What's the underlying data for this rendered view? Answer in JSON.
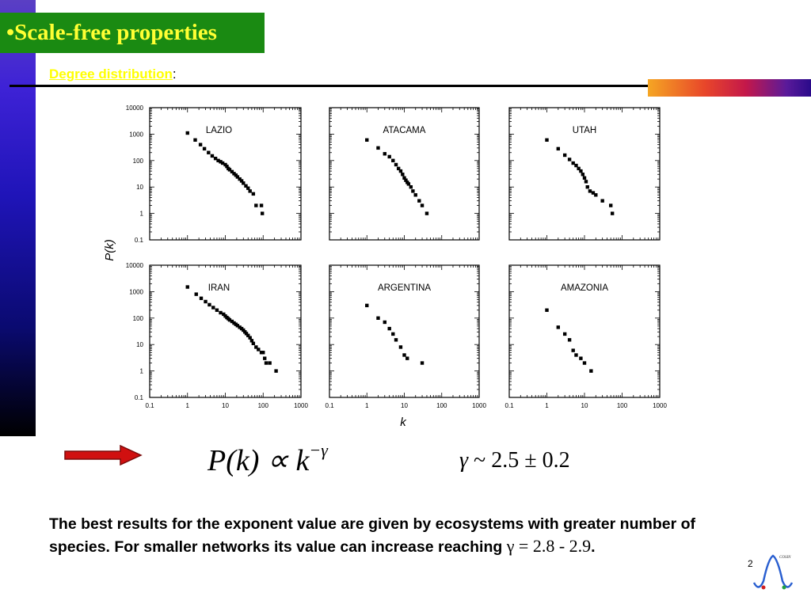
{
  "slide": {
    "title": "•Scale-free properties",
    "subtitle_link": "Degree distribution",
    "subtitle_colon": ":",
    "page_number": "2",
    "logo_text": "COSIN"
  },
  "formula": {
    "lhs": "P(k) ∝ k",
    "exponent": "−γ",
    "gamma_symbol": "γ",
    "gamma_value": " ~ 2.5 ± 0.2"
  },
  "body": {
    "line1": "The best results for the exponent value are given by ecosystems with greater number of species. For smaller networks its value can increase reaching ",
    "math": "γ = 2.8 - 2.9",
    "tail": "."
  },
  "axes": {
    "ylabel": "P(k)",
    "xlabel": "k",
    "x_ticks": [
      "0.1",
      "1",
      "10",
      "100",
      "1000"
    ],
    "y_ticks": [
      "10000",
      "1000",
      "100",
      "10",
      "1",
      "0.1"
    ]
  },
  "chart_data": [
    {
      "type": "scatter",
      "title": "LAZIO",
      "xscale": "log",
      "yscale": "log",
      "xlim": [
        0.1,
        1000
      ],
      "ylim": [
        0.1,
        10000
      ],
      "x": [
        1,
        1.6,
        2.2,
        2.8,
        3.6,
        4.5,
        5.5,
        6.5,
        7.5,
        8.5,
        10,
        11,
        12,
        13,
        15,
        17,
        19,
        21,
        24,
        27,
        30,
        35,
        40,
        45,
        55,
        65,
        90,
        95
      ],
      "y": [
        1100,
        600,
        400,
        280,
        200,
        150,
        120,
        100,
        90,
        80,
        70,
        60,
        50,
        45,
        38,
        32,
        28,
        24,
        20,
        17,
        14,
        11,
        9,
        7,
        5.5,
        2,
        2,
        1
      ]
    },
    {
      "type": "scatter",
      "title": "ATACAMA",
      "xscale": "log",
      "yscale": "log",
      "xlim": [
        0.1,
        1000
      ],
      "ylim": [
        0.1,
        10000
      ],
      "x": [
        1,
        2,
        3,
        4,
        5,
        6,
        7,
        8,
        9,
        10,
        11,
        12,
        13,
        15,
        17,
        20,
        25,
        30,
        40
      ],
      "y": [
        600,
        300,
        180,
        140,
        100,
        70,
        50,
        40,
        30,
        22,
        18,
        15,
        13,
        10,
        7,
        5,
        3,
        2,
        1
      ]
    },
    {
      "type": "scatter",
      "title": "UTAH",
      "xscale": "log",
      "yscale": "log",
      "xlim": [
        0.1,
        1000
      ],
      "ylim": [
        0.1,
        10000
      ],
      "x": [
        1,
        2,
        3,
        4,
        5,
        6,
        7,
        8,
        9,
        10,
        11,
        12,
        14,
        17,
        20,
        30,
        50,
        55
      ],
      "y": [
        600,
        280,
        160,
        110,
        80,
        65,
        50,
        40,
        30,
        22,
        16,
        10,
        7,
        6,
        5,
        3,
        2,
        1
      ]
    },
    {
      "type": "scatter",
      "title": "IRAN",
      "xscale": "log",
      "yscale": "log",
      "xlim": [
        0.1,
        1000
      ],
      "ylim": [
        0.1,
        10000
      ],
      "x": [
        1,
        1.7,
        2.3,
        3,
        3.8,
        4.8,
        6,
        7.5,
        9,
        10,
        11,
        12,
        13,
        15,
        17,
        19,
        21,
        24,
        27,
        30,
        33,
        36,
        40,
        45,
        50,
        55,
        65,
        75,
        90,
        100,
        110,
        120,
        150,
        220
      ],
      "y": [
        1500,
        800,
        560,
        420,
        320,
        250,
        200,
        160,
        140,
        120,
        105,
        95,
        85,
        75,
        65,
        58,
        52,
        45,
        40,
        35,
        30,
        26,
        22,
        18,
        14,
        11,
        8,
        6.5,
        5,
        5,
        3,
        2,
        2,
        1
      ]
    },
    {
      "type": "scatter",
      "title": "ARGENTINA",
      "xscale": "log",
      "yscale": "log",
      "xlim": [
        0.1,
        1000
      ],
      "ylim": [
        0.1,
        10000
      ],
      "x": [
        1,
        2,
        3,
        4,
        5,
        6,
        8,
        10,
        12,
        30
      ],
      "y": [
        300,
        100,
        70,
        40,
        25,
        15,
        8,
        4,
        3,
        2
      ]
    },
    {
      "type": "scatter",
      "title": "AMAZONIA",
      "xscale": "log",
      "yscale": "log",
      "xlim": [
        0.1,
        1000
      ],
      "ylim": [
        0.1,
        10000
      ],
      "x": [
        1,
        2,
        3,
        4,
        5,
        6,
        8,
        10,
        15
      ],
      "y": [
        200,
        45,
        25,
        15,
        6,
        4,
        3,
        2,
        1
      ]
    }
  ]
}
